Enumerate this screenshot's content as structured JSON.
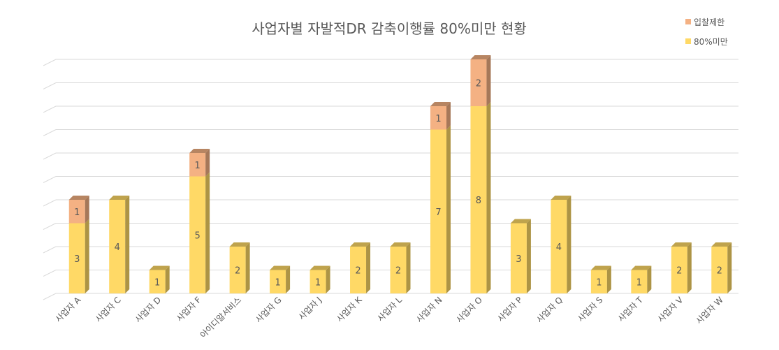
{
  "chart_data": {
    "type": "bar",
    "stacked": true,
    "three_d": true,
    "title": "사업자별 자발적DR 감축이행률 80%미만 현황",
    "categories": [
      "사업자 A",
      "사업자 C",
      "사업자 D",
      "사업자 F",
      "아이디알서비스",
      "사업자 G",
      "사업자 J",
      "사업자 K",
      "사업자 L",
      "사업자 N",
      "사업자 O",
      "사업자 P",
      "사업자 Q",
      "사업자 S",
      "사업자 T",
      "사업자 V",
      "사업자 W"
    ],
    "series": [
      {
        "name": "80%미만",
        "color": "#ffd966",
        "values": [
          3,
          4,
          1,
          5,
          2,
          1,
          1,
          2,
          2,
          7,
          8,
          3,
          4,
          1,
          1,
          2,
          2
        ]
      },
      {
        "name": "입찰제한",
        "color": "#f4b183",
        "values": [
          1,
          0,
          0,
          1,
          0,
          0,
          0,
          0,
          0,
          1,
          2,
          0,
          0,
          0,
          0,
          0,
          0
        ]
      }
    ],
    "ylim": [
      0,
      10
    ],
    "grid": true,
    "legend_position": "top-right"
  }
}
